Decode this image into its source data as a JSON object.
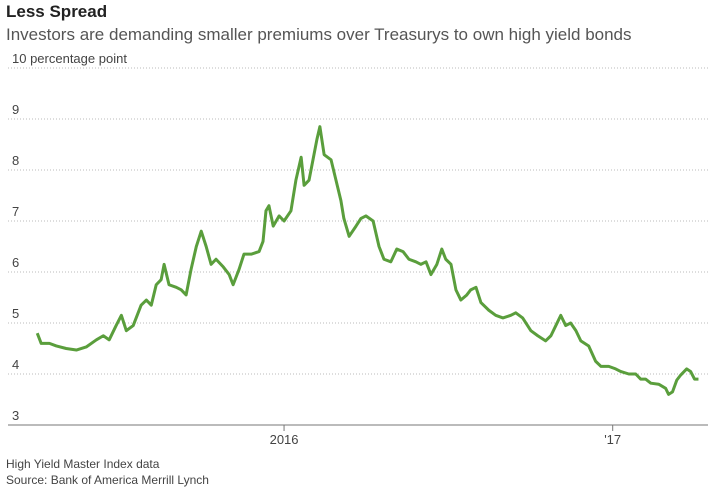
{
  "chart_data": {
    "type": "line",
    "title": "Less Spread",
    "subtitle": "Investors are demanding smaller premiums over Treasurys to own high yield bonds",
    "notes": [
      "High Yield Master Index data",
      "Source: Bank of America Merrill Lynch"
    ],
    "xlim": [
      2015.16,
      2017.29
    ],
    "xticks": [
      2016,
      {
        "value": 2017,
        "label": "'17"
      }
    ],
    "ylim": [
      3,
      10
    ],
    "yticks": [
      3,
      4,
      5,
      6,
      7,
      8,
      9,
      {
        "value": 10,
        "label": "10 percentage point"
      }
    ],
    "grid": true,
    "series": [
      {
        "color": "#5a9e3c",
        "x": [
          2015.249,
          2015.261,
          2015.286,
          2015.307,
          2015.337,
          2015.368,
          2015.398,
          2015.429,
          2015.45,
          2015.468,
          2015.489,
          2015.505,
          2015.52,
          2015.541,
          2015.565,
          2015.581,
          2015.596,
          2015.611,
          2015.626,
          2015.635,
          2015.65,
          2015.672,
          2015.687,
          2015.702,
          2015.717,
          2015.733,
          2015.748,
          2015.763,
          2015.778,
          2015.793,
          2015.815,
          2015.833,
          2015.845,
          2015.863,
          2015.878,
          2015.9,
          2015.924,
          2015.936,
          2015.945,
          2015.954,
          2015.967,
          2015.985,
          2016.0,
          2016.021,
          2016.036,
          2016.052,
          2016.061,
          2016.076,
          2016.088,
          2016.1,
          2016.109,
          2016.122,
          2016.143,
          2016.158,
          2016.173,
          2016.182,
          2016.198,
          2016.219,
          2016.234,
          2016.249,
          2016.271,
          2016.289,
          2016.304,
          2016.325,
          2016.343,
          2016.362,
          2016.38,
          2016.401,
          2016.416,
          2016.432,
          2016.447,
          2016.465,
          2016.48,
          2016.492,
          2016.508,
          2016.523,
          2016.538,
          2016.556,
          2016.568,
          2016.584,
          2016.599,
          2016.623,
          2016.644,
          2016.666,
          2016.69,
          2016.705,
          2016.726,
          2016.751,
          2016.772,
          2016.796,
          2016.812,
          2016.827,
          2016.842,
          2016.857,
          2016.872,
          2016.888,
          2016.903,
          2016.927,
          2016.948,
          2016.964,
          2016.988,
          2017.009,
          2017.024,
          2017.049,
          2017.07,
          2017.085,
          2017.1,
          2017.116,
          2017.14,
          2017.161,
          2017.17,
          2017.182,
          2017.195,
          2017.207,
          2017.225,
          2017.237,
          2017.249,
          2017.261
        ],
        "values": [
          4.8,
          4.6,
          4.6,
          4.55,
          4.5,
          4.47,
          4.53,
          4.67,
          4.75,
          4.67,
          4.95,
          5.15,
          4.85,
          4.95,
          5.35,
          5.45,
          5.35,
          5.75,
          5.85,
          6.15,
          5.75,
          5.7,
          5.65,
          5.55,
          6.05,
          6.5,
          6.8,
          6.5,
          6.15,
          6.25,
          6.1,
          5.95,
          5.75,
          6.05,
          6.35,
          6.35,
          6.4,
          6.6,
          7.2,
          7.3,
          6.9,
          7.1,
          7.0,
          7.2,
          7.8,
          8.25,
          7.7,
          7.8,
          8.2,
          8.6,
          8.85,
          8.3,
          8.2,
          7.8,
          7.4,
          7.05,
          6.7,
          6.9,
          7.05,
          7.1,
          7.0,
          6.5,
          6.25,
          6.2,
          6.45,
          6.4,
          6.25,
          6.2,
          6.15,
          6.2,
          5.95,
          6.15,
          6.45,
          6.25,
          6.15,
          5.65,
          5.45,
          5.55,
          5.65,
          5.7,
          5.4,
          5.25,
          5.15,
          5.1,
          5.15,
          5.2,
          5.1,
          4.85,
          4.75,
          4.65,
          4.75,
          4.95,
          5.15,
          4.95,
          5.0,
          4.85,
          4.65,
          4.55,
          4.25,
          4.15,
          4.15,
          4.1,
          4.05,
          4.0,
          4.0,
          3.9,
          3.9,
          3.82,
          3.8,
          3.72,
          3.6,
          3.65,
          3.88,
          3.98,
          4.1,
          4.05,
          3.9,
          3.9
        ]
      }
    ]
  }
}
